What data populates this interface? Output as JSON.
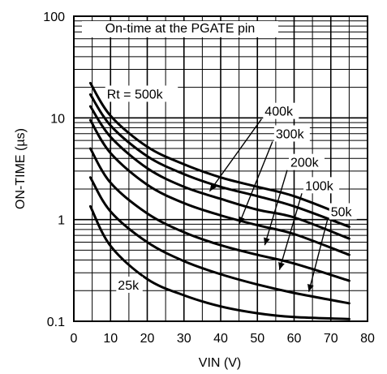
{
  "chart_data": {
    "type": "line",
    "title": "",
    "annotation_box": "On-time at the PGATE pin",
    "xlabel": "VIN (V)",
    "ylabel": "ON-TIME (µs)",
    "xlim": [
      0,
      80
    ],
    "ylim": [
      0.1,
      100
    ],
    "y_scale": "log",
    "grid": true,
    "x_ticks": [
      "0",
      "10",
      "20",
      "30",
      "40",
      "50",
      "60",
      "70",
      "80"
    ],
    "y_ticks": [
      "0.1",
      "1",
      "10",
      "100"
    ],
    "series": [
      {
        "name": "Rt = 500k",
        "x": [
          4.5,
          10,
          20,
          30,
          40,
          50,
          60,
          75
        ],
        "y": [
          22,
          10.5,
          5.2,
          3.5,
          2.6,
          2.1,
          1.7,
          1.05
        ]
      },
      {
        "name": "400k",
        "x": [
          4.5,
          10,
          20,
          30,
          40,
          50,
          60,
          75
        ],
        "y": [
          17,
          8.4,
          4.2,
          2.8,
          2.1,
          1.7,
          1.35,
          0.85
        ]
      },
      {
        "name": "300k",
        "x": [
          4.5,
          10,
          20,
          30,
          40,
          50,
          60,
          75
        ],
        "y": [
          13,
          6.5,
          3.2,
          2.1,
          1.6,
          1.25,
          1.05,
          0.65
        ]
      },
      {
        "name": "200k",
        "x": [
          4.5,
          10,
          20,
          30,
          40,
          50,
          60,
          75
        ],
        "y": [
          9.5,
          4.5,
          2.2,
          1.45,
          1.1,
          0.88,
          0.72,
          0.45
        ]
      },
      {
        "name": "100k",
        "x": [
          4.5,
          10,
          20,
          30,
          40,
          50,
          60,
          75
        ],
        "y": [
          5.0,
          2.3,
          1.15,
          0.75,
          0.56,
          0.45,
          0.37,
          0.25
        ]
      },
      {
        "name": "50k",
        "x": [
          4.5,
          10,
          20,
          30,
          40,
          50,
          60,
          75
        ],
        "y": [
          2.6,
          1.2,
          0.6,
          0.39,
          0.29,
          0.23,
          0.19,
          0.15
        ]
      },
      {
        "name": "25k",
        "x": [
          4.5,
          10,
          20,
          30,
          40,
          50,
          60,
          75
        ],
        "y": [
          1.35,
          0.55,
          0.26,
          0.18,
          0.14,
          0.12,
          0.11,
          0.105
        ]
      }
    ],
    "arrows": [
      {
        "label": "400k",
        "label_at": [
          52,
          10.5
        ],
        "tip": [
          37,
          1.9
        ]
      },
      {
        "label": "300k",
        "label_at": [
          55,
          6.3
        ],
        "tip": [
          45,
          0.9
        ]
      },
      {
        "label": "200k",
        "label_at": [
          59,
          3.3
        ],
        "tip": [
          52,
          0.56
        ]
      },
      {
        "label": "100k",
        "label_at": [
          63,
          1.95
        ],
        "tip": [
          56,
          0.32
        ]
      },
      {
        "label": "50k",
        "label_at": [
          70,
          1.08
        ],
        "tip": [
          64,
          0.195
        ]
      }
    ],
    "inline_labels": [
      {
        "label": "Rt = 500k",
        "at": [
          9,
          15.5
        ]
      },
      {
        "label": "25k",
        "at": [
          12,
          0.205
        ]
      }
    ]
  }
}
